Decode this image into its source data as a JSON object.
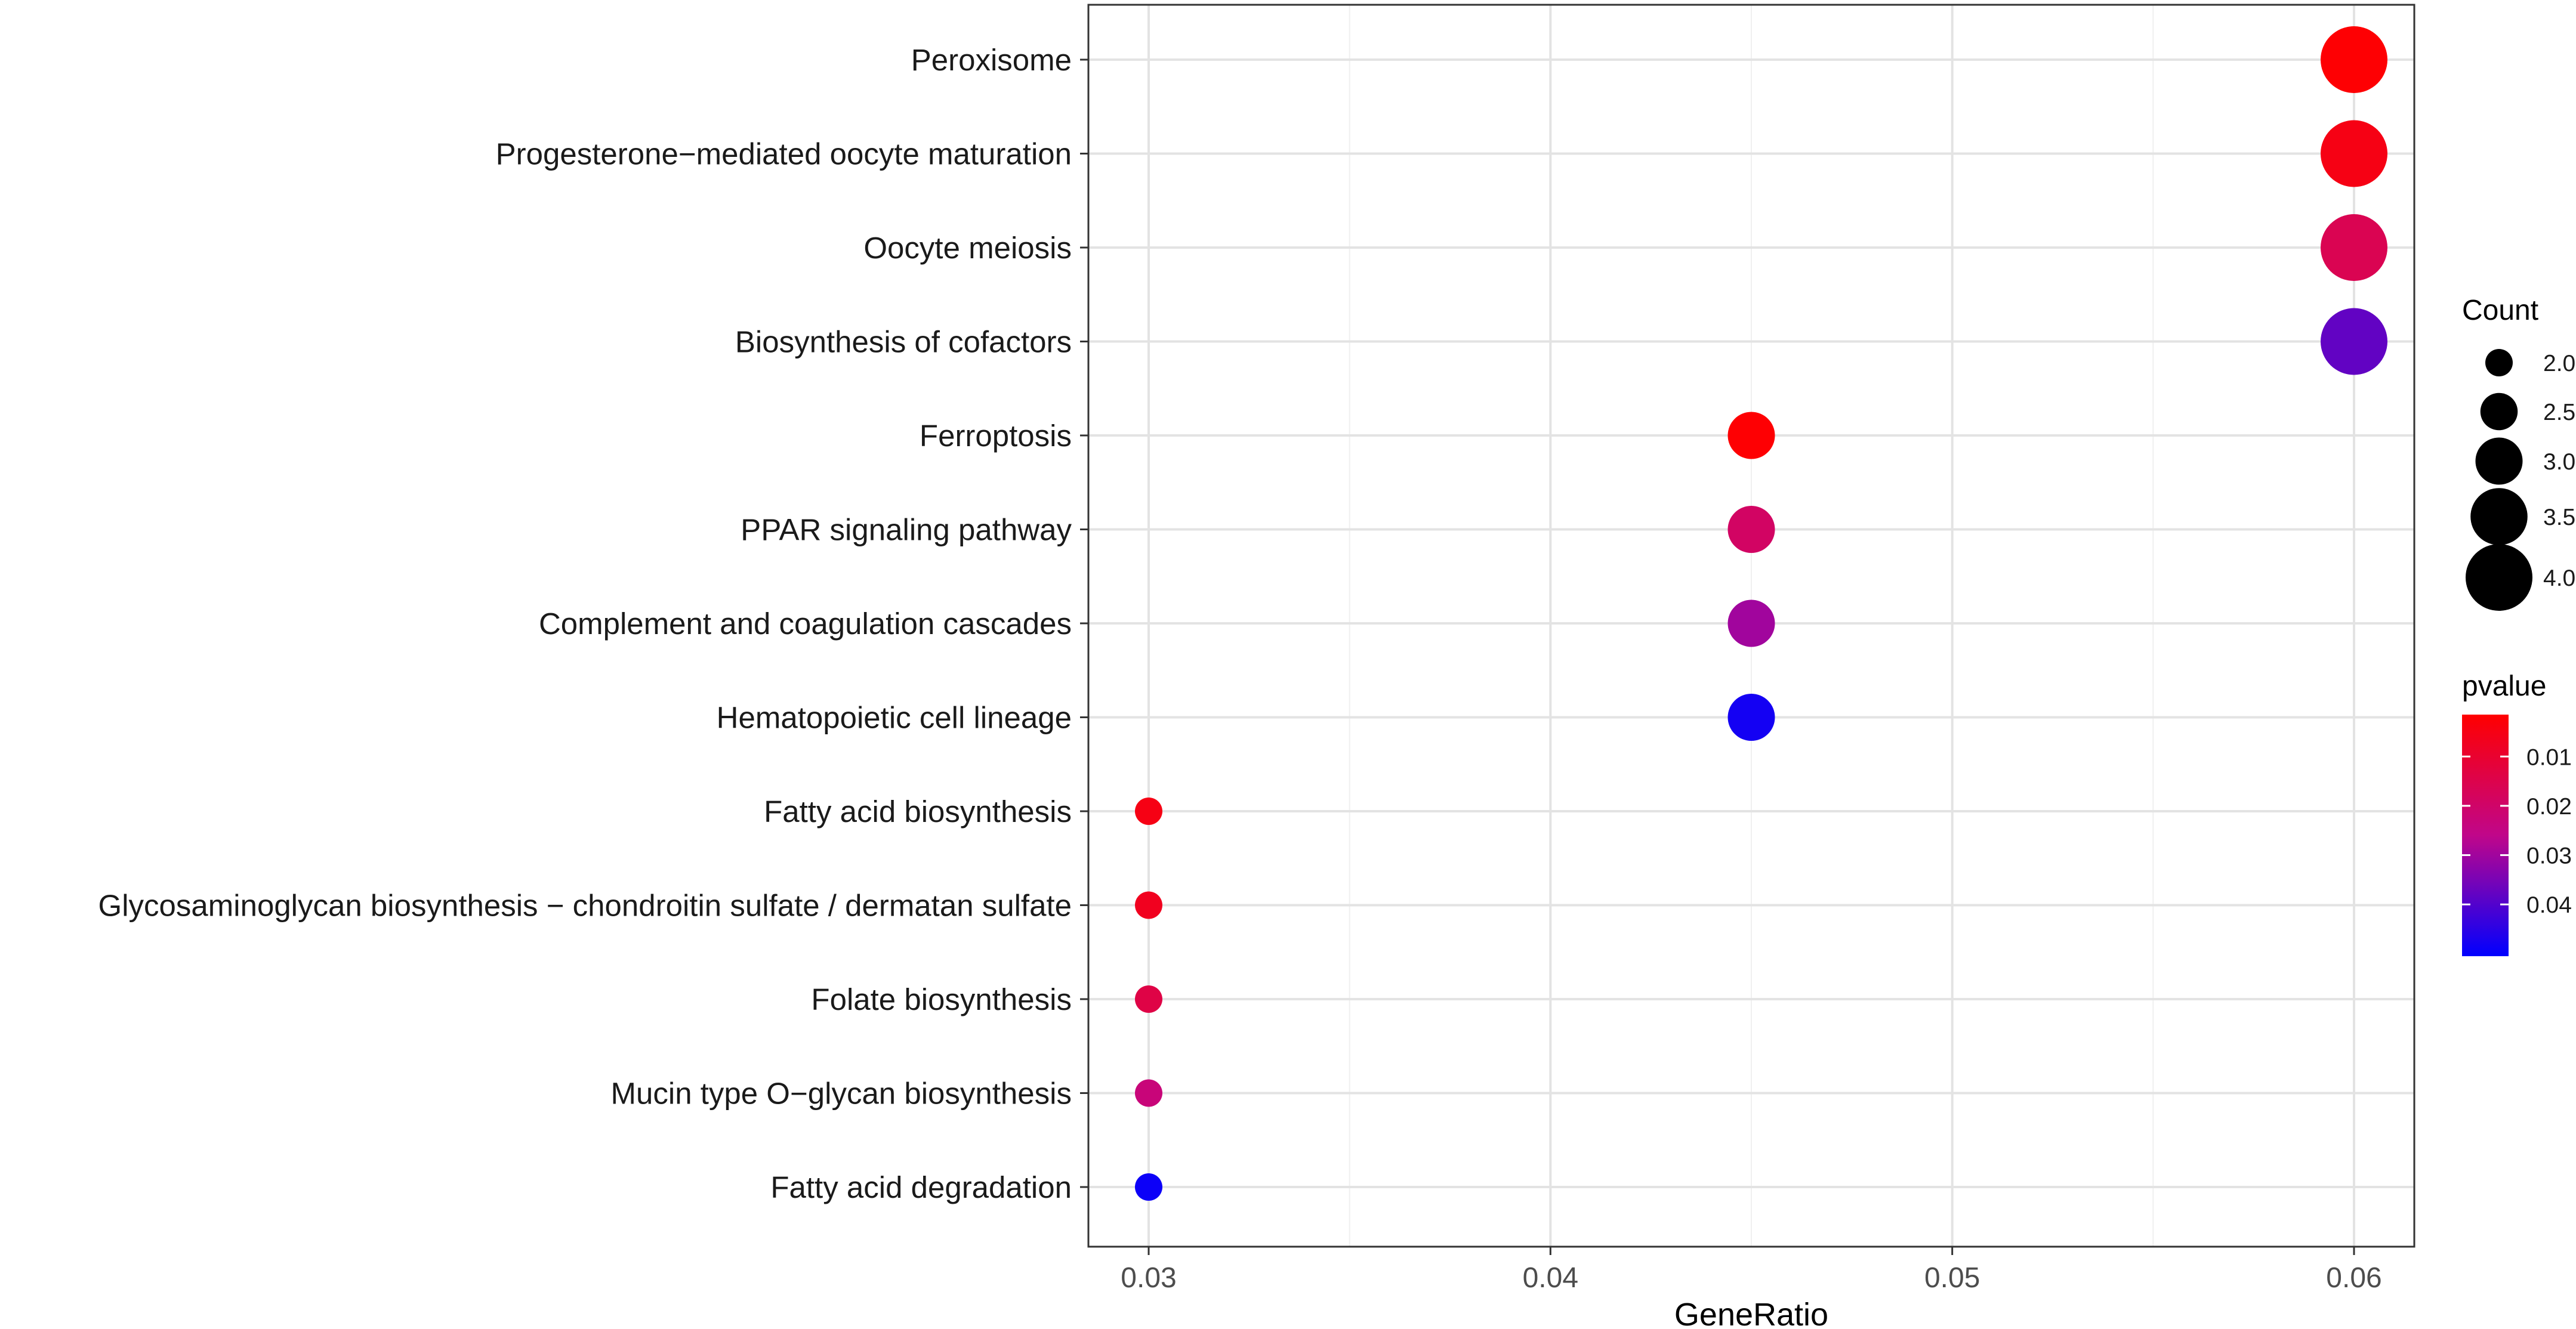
{
  "chart_data": {
    "type": "scatter",
    "subtype": "dot-plot",
    "xlabel": "GeneRatio",
    "ylabel": "",
    "xlim": [
      0.0285,
      0.0615
    ],
    "x_ticks": [
      "0.03",
      "0.04",
      "0.05",
      "0.06"
    ],
    "x_tick_values": [
      0.03,
      0.04,
      0.05,
      0.06
    ],
    "categories": [
      "Peroxisome",
      "Progesterone−mediated oocyte maturation",
      "Oocyte meiosis",
      "Biosynthesis of cofactors",
      "Ferroptosis",
      "PPAR signaling pathway",
      "Complement and coagulation cascades",
      "Hematopoietic cell lineage",
      "Fatty acid biosynthesis",
      "Glycosaminoglycan biosynthesis − chondroitin sulfate / dermatan sulfate",
      "Folate biosynthesis",
      "Mucin type O−glycan biosynthesis",
      "Fatty acid degradation"
    ],
    "points": [
      {
        "category": "Peroxisome",
        "x": 0.06,
        "count": 4,
        "pvalue": 0.002
      },
      {
        "category": "Progesterone−mediated oocyte maturation",
        "x": 0.06,
        "count": 4,
        "pvalue": 0.005
      },
      {
        "category": "Oocyte meiosis",
        "x": 0.06,
        "count": 4,
        "pvalue": 0.016
      },
      {
        "category": "Biosynthesis of cofactors",
        "x": 0.06,
        "count": 4,
        "pvalue": 0.038
      },
      {
        "category": "Ferroptosis",
        "x": 0.045,
        "count": 3,
        "pvalue": 0.002
      },
      {
        "category": "PPAR signaling pathway",
        "x": 0.045,
        "count": 3,
        "pvalue": 0.019
      },
      {
        "category": "Complement and coagulation cascades",
        "x": 0.045,
        "count": 3,
        "pvalue": 0.03
      },
      {
        "category": "Hematopoietic cell lineage",
        "x": 0.045,
        "count": 3,
        "pvalue": 0.048
      },
      {
        "category": "Fatty acid biosynthesis",
        "x": 0.03,
        "count": 2,
        "pvalue": 0.005
      },
      {
        "category": "Glycosaminoglycan biosynthesis − chondroitin sulfate / dermatan sulfate",
        "x": 0.03,
        "count": 2,
        "pvalue": 0.007
      },
      {
        "category": "Folate biosynthesis",
        "x": 0.03,
        "count": 2,
        "pvalue": 0.014
      },
      {
        "category": "Mucin type O−glycan biosynthesis",
        "x": 0.03,
        "count": 2,
        "pvalue": 0.023
      },
      {
        "category": "Fatty acid degradation",
        "x": 0.03,
        "count": 2,
        "pvalue": 0.049
      }
    ],
    "size_legend": {
      "title": "Count",
      "labels": [
        "2.0",
        "2.5",
        "3.0",
        "3.5",
        "4.0"
      ],
      "values": [
        2.0,
        2.5,
        3.0,
        3.5,
        4.0
      ]
    },
    "color_legend": {
      "title": "pvalue",
      "labels": [
        "0.01",
        "0.02",
        "0.03",
        "0.04"
      ],
      "values": [
        0.01,
        0.02,
        0.03,
        0.04
      ],
      "range": [
        0.0015,
        0.0505
      ],
      "low_color": "#ff0000",
      "high_color": "#0000ff"
    },
    "grid": true,
    "legend_position": "right"
  }
}
